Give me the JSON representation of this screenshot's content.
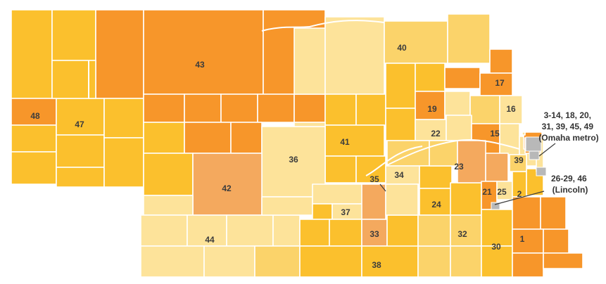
{
  "colors": {
    "c1": "#fbc02d",
    "c2": "#f7962a",
    "c3": "#fde39a",
    "c4": "#fbd36a",
    "c5": "#f4a95e",
    "metro": "#b8b8b8",
    "label": "#3c3c3c",
    "border": "#ffffff"
  },
  "district_labels": [
    {
      "id": "43",
      "text": "43"
    },
    {
      "id": "40",
      "text": "40"
    },
    {
      "id": "17",
      "text": "17"
    },
    {
      "id": "16",
      "text": "16"
    },
    {
      "id": "19",
      "text": "19"
    },
    {
      "id": "48",
      "text": "48"
    },
    {
      "id": "47",
      "text": "47"
    },
    {
      "id": "22",
      "text": "22"
    },
    {
      "id": "15",
      "text": "15"
    },
    {
      "id": "41",
      "text": "41"
    },
    {
      "id": "36",
      "text": "36"
    },
    {
      "id": "39",
      "text": "39"
    },
    {
      "id": "23",
      "text": "23"
    },
    {
      "id": "35",
      "text": "35"
    },
    {
      "id": "34",
      "text": "34"
    },
    {
      "id": "42",
      "text": "42"
    },
    {
      "id": "21",
      "text": "21"
    },
    {
      "id": "25",
      "text": "25"
    },
    {
      "id": "2",
      "text": "2"
    },
    {
      "id": "24",
      "text": "24"
    },
    {
      "id": "37",
      "text": "37"
    },
    {
      "id": "44",
      "text": "44"
    },
    {
      "id": "33",
      "text": "33"
    },
    {
      "id": "32",
      "text": "32"
    },
    {
      "id": "1",
      "text": "1"
    },
    {
      "id": "30",
      "text": "30"
    },
    {
      "id": "38",
      "text": "38"
    }
  ],
  "callouts": {
    "omaha": [
      "3-14, 18, 20,",
      "31, 39, 45, 49",
      "(Omaha metro)"
    ],
    "lincoln": [
      "26-29, 46",
      "(Lincoln)"
    ]
  }
}
